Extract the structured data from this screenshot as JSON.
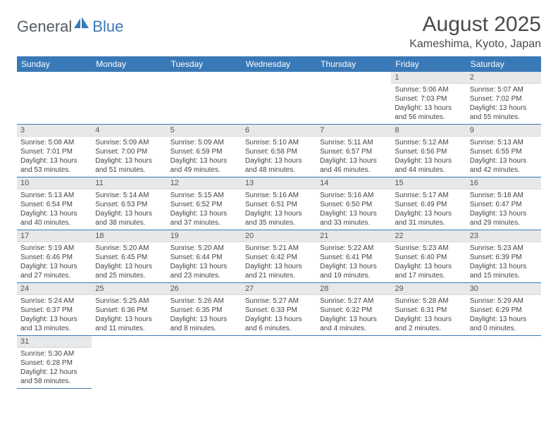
{
  "branding": {
    "logo_part1": "General",
    "logo_part2": "Blue",
    "logo_color1": "#555b60",
    "logo_color2": "#3a79b7"
  },
  "header": {
    "month_title": "August 2025",
    "location": "Kameshima, Kyoto, Japan"
  },
  "style": {
    "header_bg": "#3a79b7",
    "header_fg": "#ffffff",
    "daynum_bg": "#e7e8e9",
    "row_border": "#3a79b7",
    "title_fontsize": 30,
    "location_fontsize": 16,
    "dayhdr_fontsize": 12,
    "daynum_fontsize": 11,
    "body_fontsize": 10
  },
  "day_headers": [
    "Sunday",
    "Monday",
    "Tuesday",
    "Wednesday",
    "Thursday",
    "Friday",
    "Saturday"
  ],
  "weeks": [
    [
      null,
      null,
      null,
      null,
      null,
      {
        "n": "1",
        "sunrise": "5:06 AM",
        "sunset": "7:03 PM",
        "daylight": "13 hours and 56 minutes."
      },
      {
        "n": "2",
        "sunrise": "5:07 AM",
        "sunset": "7:02 PM",
        "daylight": "13 hours and 55 minutes."
      }
    ],
    [
      {
        "n": "3",
        "sunrise": "5:08 AM",
        "sunset": "7:01 PM",
        "daylight": "13 hours and 53 minutes."
      },
      {
        "n": "4",
        "sunrise": "5:09 AM",
        "sunset": "7:00 PM",
        "daylight": "13 hours and 51 minutes."
      },
      {
        "n": "5",
        "sunrise": "5:09 AM",
        "sunset": "6:59 PM",
        "daylight": "13 hours and 49 minutes."
      },
      {
        "n": "6",
        "sunrise": "5:10 AM",
        "sunset": "6:58 PM",
        "daylight": "13 hours and 48 minutes."
      },
      {
        "n": "7",
        "sunrise": "5:11 AM",
        "sunset": "6:57 PM",
        "daylight": "13 hours and 46 minutes."
      },
      {
        "n": "8",
        "sunrise": "5:12 AM",
        "sunset": "6:56 PM",
        "daylight": "13 hours and 44 minutes."
      },
      {
        "n": "9",
        "sunrise": "5:13 AM",
        "sunset": "6:55 PM",
        "daylight": "13 hours and 42 minutes."
      }
    ],
    [
      {
        "n": "10",
        "sunrise": "5:13 AM",
        "sunset": "6:54 PM",
        "daylight": "13 hours and 40 minutes."
      },
      {
        "n": "11",
        "sunrise": "5:14 AM",
        "sunset": "6:53 PM",
        "daylight": "13 hours and 38 minutes."
      },
      {
        "n": "12",
        "sunrise": "5:15 AM",
        "sunset": "6:52 PM",
        "daylight": "13 hours and 37 minutes."
      },
      {
        "n": "13",
        "sunrise": "5:16 AM",
        "sunset": "6:51 PM",
        "daylight": "13 hours and 35 minutes."
      },
      {
        "n": "14",
        "sunrise": "5:16 AM",
        "sunset": "6:50 PM",
        "daylight": "13 hours and 33 minutes."
      },
      {
        "n": "15",
        "sunrise": "5:17 AM",
        "sunset": "6:49 PM",
        "daylight": "13 hours and 31 minutes."
      },
      {
        "n": "16",
        "sunrise": "5:18 AM",
        "sunset": "6:47 PM",
        "daylight": "13 hours and 29 minutes."
      }
    ],
    [
      {
        "n": "17",
        "sunrise": "5:19 AM",
        "sunset": "6:46 PM",
        "daylight": "13 hours and 27 minutes."
      },
      {
        "n": "18",
        "sunrise": "5:20 AM",
        "sunset": "6:45 PM",
        "daylight": "13 hours and 25 minutes."
      },
      {
        "n": "19",
        "sunrise": "5:20 AM",
        "sunset": "6:44 PM",
        "daylight": "13 hours and 23 minutes."
      },
      {
        "n": "20",
        "sunrise": "5:21 AM",
        "sunset": "6:42 PM",
        "daylight": "13 hours and 21 minutes."
      },
      {
        "n": "21",
        "sunrise": "5:22 AM",
        "sunset": "6:41 PM",
        "daylight": "13 hours and 19 minutes."
      },
      {
        "n": "22",
        "sunrise": "5:23 AM",
        "sunset": "6:40 PM",
        "daylight": "13 hours and 17 minutes."
      },
      {
        "n": "23",
        "sunrise": "5:23 AM",
        "sunset": "6:39 PM",
        "daylight": "13 hours and 15 minutes."
      }
    ],
    [
      {
        "n": "24",
        "sunrise": "5:24 AM",
        "sunset": "6:37 PM",
        "daylight": "13 hours and 13 minutes."
      },
      {
        "n": "25",
        "sunrise": "5:25 AM",
        "sunset": "6:36 PM",
        "daylight": "13 hours and 11 minutes."
      },
      {
        "n": "26",
        "sunrise": "5:26 AM",
        "sunset": "6:35 PM",
        "daylight": "13 hours and 8 minutes."
      },
      {
        "n": "27",
        "sunrise": "5:27 AM",
        "sunset": "6:33 PM",
        "daylight": "13 hours and 6 minutes."
      },
      {
        "n": "28",
        "sunrise": "5:27 AM",
        "sunset": "6:32 PM",
        "daylight": "13 hours and 4 minutes."
      },
      {
        "n": "29",
        "sunrise": "5:28 AM",
        "sunset": "6:31 PM",
        "daylight": "13 hours and 2 minutes."
      },
      {
        "n": "30",
        "sunrise": "5:29 AM",
        "sunset": "6:29 PM",
        "daylight": "13 hours and 0 minutes."
      }
    ],
    [
      {
        "n": "31",
        "sunrise": "5:30 AM",
        "sunset": "6:28 PM",
        "daylight": "12 hours and 58 minutes."
      },
      null,
      null,
      null,
      null,
      null,
      null
    ]
  ],
  "labels": {
    "sunrise_prefix": "Sunrise: ",
    "sunset_prefix": "Sunset: ",
    "daylight_prefix": "Daylight: "
  }
}
